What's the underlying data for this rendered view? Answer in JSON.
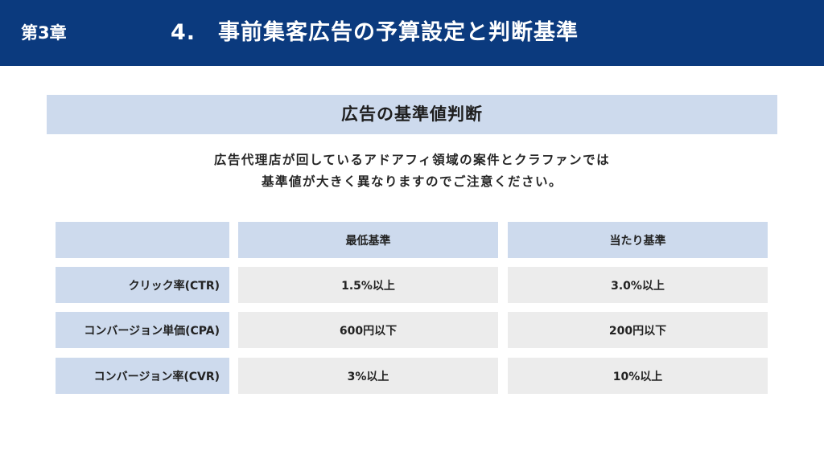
{
  "header": {
    "chapter": "第3章",
    "title": "4.　事前集客広告の予算設定と判断基準"
  },
  "section": {
    "heading": "広告の基準値判断",
    "description_lines": [
      "広告代理店が回しているアドアフィ領域の案件とクラファンでは",
      "基準値が大きく異なりますのでご注意ください。"
    ]
  },
  "table": {
    "columns": [
      "",
      "最低基準",
      "当たり基準"
    ],
    "rows": [
      {
        "label": "クリック率(CTR)",
        "min": "1.5%以上",
        "hit": "3.0%以上"
      },
      {
        "label": "コンバージョン単価(CPA)",
        "min": "600円以下",
        "hit": "200円以下"
      },
      {
        "label": "コンバージョン率(CVR)",
        "min": "3%以上",
        "hit": "10%以上"
      }
    ]
  },
  "colors": {
    "header_bg": "#0b3a7e",
    "light_blue": "#cddaed",
    "light_gray": "#ececec"
  }
}
